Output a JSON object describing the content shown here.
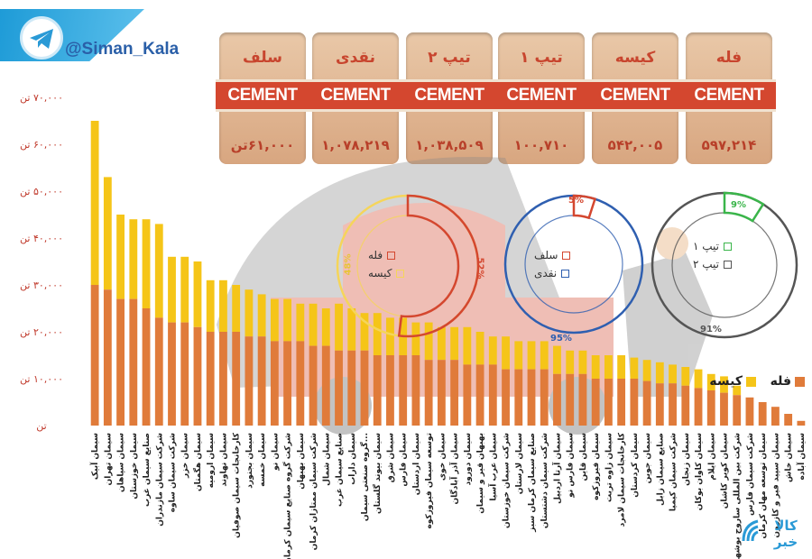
{
  "brand": {
    "handle": "@Siman_Kala",
    "icon": "telegram-icon"
  },
  "summary_bags": [
    {
      "name": "فله",
      "value": "۵۹۷,۲۱۴"
    },
    {
      "name": "کیسه",
      "value": "۵۴۲,۰۰۵"
    },
    {
      "name": "تیپ ۱",
      "value": "۱۰۰,۷۱۰"
    },
    {
      "name": "تیپ ۲",
      "value": "۱,۰۳۸,۵۰۹"
    },
    {
      "name": "نقدی",
      "value": "۱,۰۷۸,۲۱۹"
    },
    {
      "name": "سلف",
      "value": "۶۱,۰۰۰تن"
    }
  ],
  "bag_label": "CEMENT",
  "colors": {
    "bulk": "#e07b3a",
    "bag": "#f5c518",
    "accent": "#d4472f"
  },
  "chart_data": {
    "type": "bar",
    "title": "",
    "xlabel": "",
    "ylabel": "",
    "ylim": [
      0,
      70000
    ],
    "yticks": [
      {
        "v": 0,
        "label": "تن"
      },
      {
        "v": 10000,
        "label": "۱۰,۰۰۰ تن"
      },
      {
        "v": 20000,
        "label": "۲۰,۰۰۰ تن"
      },
      {
        "v": 30000,
        "label": "۳۰,۰۰۰ تن"
      },
      {
        "v": 40000,
        "label": "۴۰,۰۰۰ تن"
      },
      {
        "v": 50000,
        "label": "۵۰,۰۰۰ تن"
      },
      {
        "v": 60000,
        "label": "۶۰,۰۰۰ تن"
      },
      {
        "v": 70000,
        "label": "۷۰,۰۰۰ تن"
      }
    ],
    "legend": [
      {
        "name": "فله",
        "color": "#e07b3a"
      },
      {
        "name": "کیسه",
        "color": "#f5c518"
      }
    ],
    "stacked": true,
    "categories": [
      "سیمان آبیک",
      "سیمان تهران",
      "سیمان سپاهان",
      "سیمان خوزستان",
      "صنایع سیمان غرب",
      "شرکت سیمان مازندران",
      "شرکت سیمان ساوه",
      "سیمان خزر",
      "سیمان هگمتان",
      "سیمان ارومیه",
      "سیمان نهاوند",
      "کارخانجات سیمان صوفیان",
      "سیمان بجنورد",
      "سیمان خمسه",
      "سیمان نو",
      "شرکت گروه صنایع سیمان کرمان",
      "سیمان بهبهان",
      "شرکت سیمان ممتازان کرمان",
      "سیمان شمال",
      "صنایع سیمان غرب",
      "سیمان داراب",
      "گروه صنعتی سیمان...",
      "سیمان بیوند گلستان",
      "سیمان شرق",
      "سیمان فارس",
      "سیمان اردستان",
      "توسعه سیمان فیروزکوه",
      "سیمان خوی",
      "سیمان آذر آبادگان",
      "سیمان دورود",
      "بهبهان قیر و سیمان",
      "سیمان عرب آسیا",
      "شرکت سیمان خوزستان",
      "سیمان لارستان",
      "صنایع سیمان کرمان سبز",
      "شرکت سیمان دشتستان",
      "سیمان آرتا اردبیل",
      "سیمان فارس نو",
      "سیمان قاین",
      "سیمان فیروزکوه",
      "سیمان زاوه تربت",
      "کارخانجات سیمان لامرد",
      "سیمان کردستان",
      "سیمان جوین",
      "صنایع سیمان زابل",
      "شرکت سیمان کیمیا",
      "سیمان زنجان",
      "سیمان کاوان بوکان",
      "سیمان ایلام",
      "سیمان کویر کاشان",
      "شرکت بین المللی ساروج بوشهر",
      "شرکت سیمان فارس",
      "سیمان توسعه مهان کرمان",
      "سیمان سپید فیر و کازرون",
      "سیمان خاش",
      "سیمان آباده"
    ],
    "series": [
      {
        "name": "فله",
        "values": [
          30000,
          29000,
          27000,
          27000,
          25000,
          23000,
          22000,
          22000,
          21000,
          20000,
          20000,
          20000,
          19000,
          19000,
          18000,
          18000,
          18000,
          17000,
          17000,
          16000,
          16000,
          16000,
          15000,
          15000,
          15000,
          15000,
          14000,
          14000,
          14000,
          13000,
          13000,
          13000,
          12000,
          12000,
          12000,
          12000,
          11000,
          11000,
          11000,
          10000,
          10000,
          10000,
          10000,
          9500,
          9000,
          9000,
          8500,
          8000,
          7500,
          7000,
          6500,
          6000,
          5000,
          4000,
          2500,
          1000
        ]
      },
      {
        "name": "کیسه",
        "values": [
          35000,
          24000,
          18000,
          17000,
          19000,
          20000,
          14000,
          14000,
          14000,
          11000,
          11000,
          10000,
          10000,
          9000,
          9000,
          9000,
          8000,
          9000,
          8000,
          10000,
          9000,
          8000,
          9000,
          8000,
          8000,
          7000,
          8000,
          7000,
          7000,
          8000,
          7000,
          6000,
          7000,
          6000,
          6000,
          6000,
          6000,
          5000,
          5000,
          5000,
          5000,
          5000,
          4500,
          4500,
          4500,
          4000,
          4000,
          4000,
          3500,
          3500,
          2000,
          0,
          0,
          0,
          0,
          0
        ]
      }
    ]
  },
  "donuts": [
    {
      "legend": [
        {
          "name": "فله",
          "color": "#d4472f"
        },
        {
          "name": "کیسه",
          "color": "#f5d55a"
        }
      ],
      "slices": [
        52,
        48
      ],
      "labels": [
        "52%",
        "48%"
      ]
    },
    {
      "legend": [
        {
          "name": "سلف",
          "color": "#d4472f"
        },
        {
          "name": "نقدی",
          "color": "#2f5fb0"
        }
      ],
      "slices": [
        5,
        95
      ],
      "labels": [
        "5%",
        "95%"
      ]
    },
    {
      "legend": [
        {
          "name": "تیپ ۱",
          "color": "#3ab54a"
        },
        {
          "name": "تیپ ۲",
          "color": "#555555"
        }
      ],
      "slices": [
        9,
        91
      ],
      "labels": [
        "9%",
        "91%"
      ]
    }
  ],
  "footer_logo": {
    "text": "کالا خبر",
    "icon": "kala-khabar-logo"
  }
}
